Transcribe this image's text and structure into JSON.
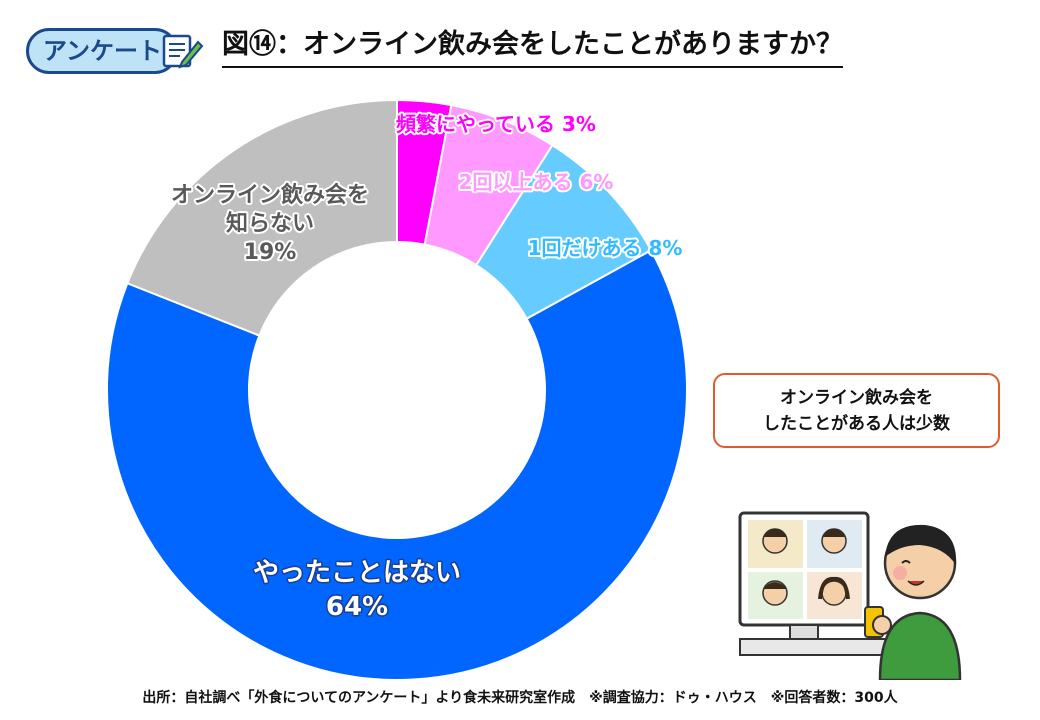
{
  "header": {
    "badge": "アンケート",
    "title": "図⑭：オンライン飲み会をしたことがありますか？"
  },
  "chart_data": {
    "type": "pie",
    "variant": "donut",
    "title": "図⑭：オンライン飲み会をしたことがありますか？",
    "slices": [
      {
        "label": "頻繁にやっている",
        "value": 3,
        "display": "頻繁にやっている 3%",
        "color": "#ff00ff",
        "text_color": "#ff00ff"
      },
      {
        "label": "2回以上ある",
        "value": 6,
        "display": "2回以上ある 6%",
        "color": "#ff99ff",
        "text_color": "#ff99ff"
      },
      {
        "label": "1回だけある",
        "value": 8,
        "display": "1回だけある 8%",
        "color": "#66ccff",
        "text_color": "#33bbff"
      },
      {
        "label": "やったことはない",
        "value": 64,
        "display": "やったことはない\n64%",
        "color": "#0066ff",
        "text_color": "#ffffff"
      },
      {
        "label": "オンライン飲み会を知らない",
        "value": 19,
        "display": "オンライン飲み会を\n知らない\n19%",
        "color": "#bfbfbf",
        "text_color": "#595959"
      }
    ]
  },
  "callout": {
    "line1": "オンライン飲み会を",
    "line2": "したことがある人は少数"
  },
  "footer": {
    "source": "出所：自社調べ「外食についてのアンケート」より食未来研究室作成　※調査協力：ドゥ・ハウス　※回答者数：300人"
  },
  "colors": {
    "badge_border": "#1b4a8c",
    "badge_fill": "#bfe3f6",
    "callout_border": "#e35b2c"
  },
  "illustration": "person-in-online-video-call-with-drink"
}
